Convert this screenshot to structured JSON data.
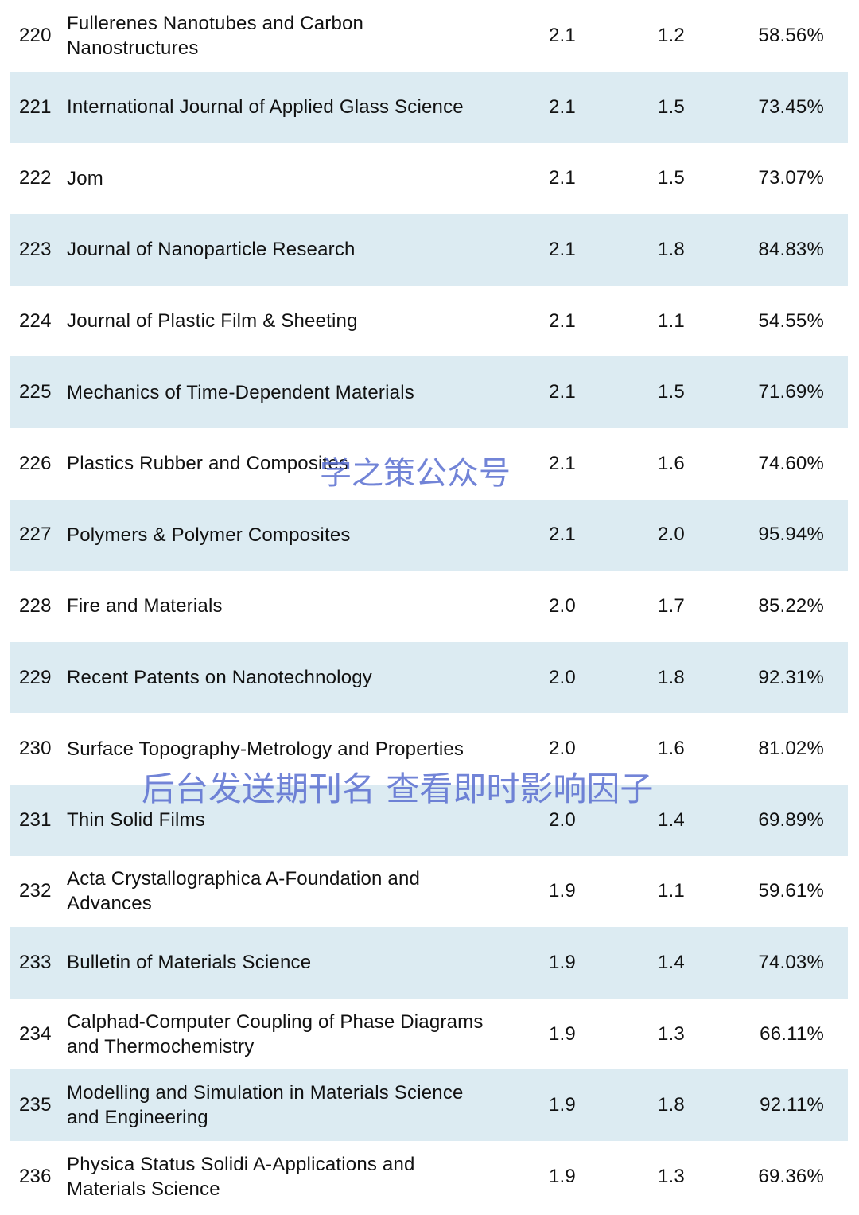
{
  "rows": [
    {
      "rank": "220",
      "name": "Fullerenes Nanotubes and Carbon Nanostructures",
      "if": "2.1",
      "if5": "1.2",
      "pct": "58.56%"
    },
    {
      "rank": "221",
      "name": "International Journal of Applied Glass Science",
      "if": "2.1",
      "if5": "1.5",
      "pct": "73.45%"
    },
    {
      "rank": "222",
      "name": "Jom",
      "if": "2.1",
      "if5": "1.5",
      "pct": "73.07%"
    },
    {
      "rank": "223",
      "name": "Journal of Nanoparticle Research",
      "if": "2.1",
      "if5": "1.8",
      "pct": "84.83%"
    },
    {
      "rank": "224",
      "name": "Journal of Plastic Film & Sheeting",
      "if": "2.1",
      "if5": "1.1",
      "pct": "54.55%"
    },
    {
      "rank": "225",
      "name": "Mechanics of Time-Dependent Materials",
      "if": "2.1",
      "if5": "1.5",
      "pct": "71.69%"
    },
    {
      "rank": "226",
      "name": "Plastics Rubber and Composites",
      "if": "2.1",
      "if5": "1.6",
      "pct": "74.60%"
    },
    {
      "rank": "227",
      "name": "Polymers & Polymer Composites",
      "if": "2.1",
      "if5": "2.0",
      "pct": "95.94%"
    },
    {
      "rank": "228",
      "name": "Fire and Materials",
      "if": "2.0",
      "if5": "1.7",
      "pct": "85.22%"
    },
    {
      "rank": "229",
      "name": "Recent Patents on Nanotechnology",
      "if": "2.0",
      "if5": "1.8",
      "pct": "92.31%"
    },
    {
      "rank": "230",
      "name": "Surface Topography-Metrology and Properties",
      "if": "2.0",
      "if5": "1.6",
      "pct": "81.02%"
    },
    {
      "rank": "231",
      "name": "Thin Solid Films",
      "if": "2.0",
      "if5": "1.4",
      "pct": "69.89%"
    },
    {
      "rank": "232",
      "name": "Acta Crystallographica A-Foundation and Advances",
      "if": "1.9",
      "if5": "1.1",
      "pct": "59.61%"
    },
    {
      "rank": "233",
      "name": "Bulletin of Materials Science",
      "if": "1.9",
      "if5": "1.4",
      "pct": "74.03%"
    },
    {
      "rank": "234",
      "name": "Calphad-Computer Coupling of Phase Diagrams and Thermochemistry",
      "if": "1.9",
      "if5": "1.3",
      "pct": "66.11%"
    },
    {
      "rank": "235",
      "name": "Modelling and Simulation in Materials Science and Engineering",
      "if": "1.9",
      "if5": "1.8",
      "pct": "92.11%"
    },
    {
      "rank": "236",
      "name": "Physica Status Solidi A-Applications and Materials Science",
      "if": "1.9",
      "if5": "1.3",
      "pct": "69.36%"
    }
  ],
  "watermarks": {
    "top": "学之策公众号",
    "bottom": "后台发送期刊名 查看即时影响因子"
  },
  "colors": {
    "row_shade": "#dcebf2",
    "watermark": "#5a6fd1"
  }
}
